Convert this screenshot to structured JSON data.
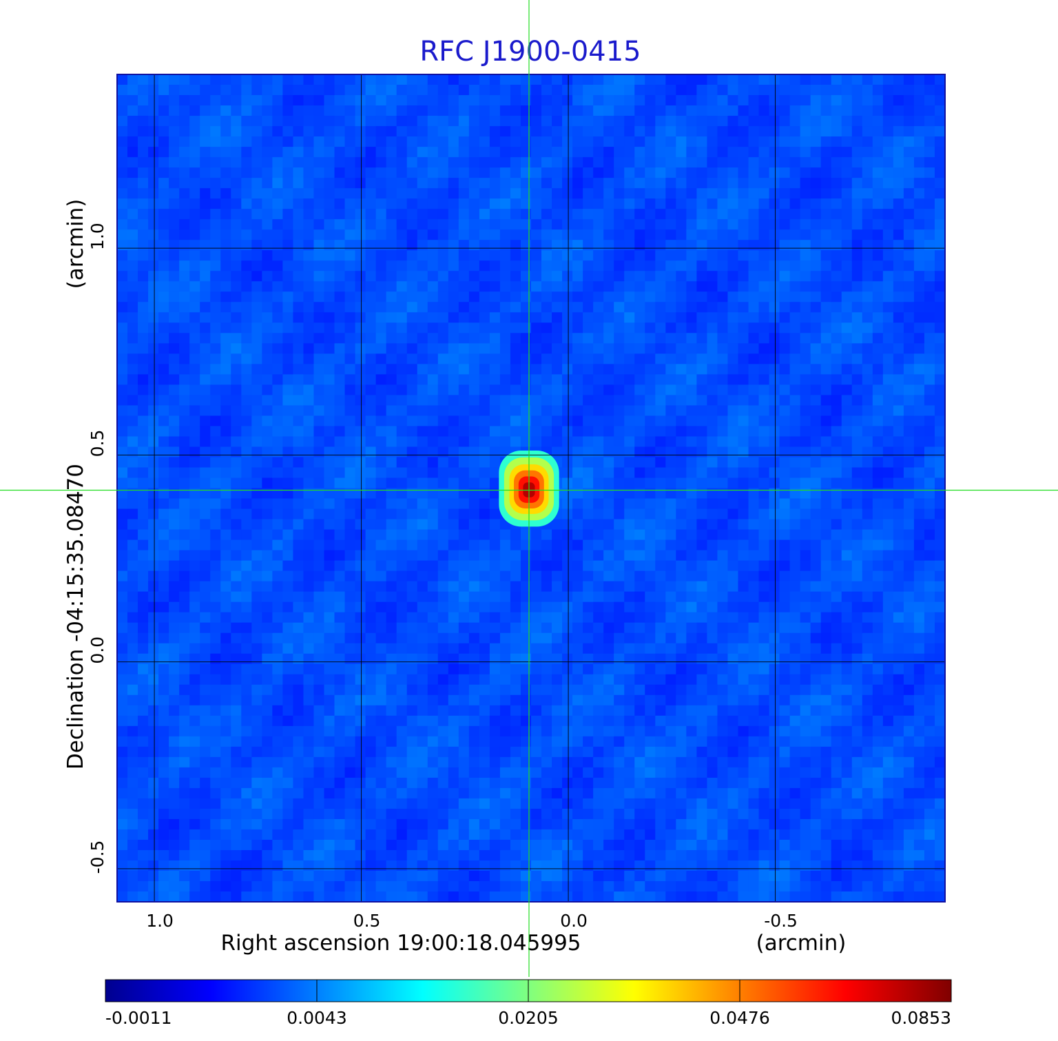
{
  "chart_data": {
    "type": "heatmap",
    "title": "RFC J1900-0415",
    "xlabel": "Right ascension  19:00:18.045995",
    "xunit": "(arcmin)",
    "ylabel": "Declination  -04:15:35.08470",
    "yunit": "(arcmin)",
    "x_range_arcmin": [
      1.09,
      -0.91
    ],
    "y_range_arcmin": [
      -0.58,
      1.42
    ],
    "x_ticks": [
      {
        "value": 1.0,
        "label": "1.0"
      },
      {
        "value": 0.5,
        "label": "0.5"
      },
      {
        "value": 0.0,
        "label": "0.0"
      },
      {
        "value": -0.5,
        "label": "-0.5"
      }
    ],
    "y_ticks": [
      {
        "value": -0.5,
        "label": "-0.5"
      },
      {
        "value": 0.0,
        "label": "0.0"
      },
      {
        "value": 0.5,
        "label": "0.5"
      },
      {
        "value": 1.0,
        "label": "1.0"
      }
    ],
    "grid": true,
    "crosshair_arcmin": {
      "x": 0.095,
      "y": 0.415
    },
    "source": {
      "x_arcmin": 0.095,
      "y_arcmin": 0.415,
      "peak": 0.0853
    },
    "colorbar": {
      "colormap": "jet",
      "ticks": [
        {
          "value": -0.0011,
          "label": "-0.0011"
        },
        {
          "value": 0.0043,
          "label": "0.0043"
        },
        {
          "value": 0.0205,
          "label": "0.0205"
        },
        {
          "value": 0.0476,
          "label": "0.0476"
        },
        {
          "value": 0.0853,
          "label": "0.0853"
        }
      ]
    },
    "colors": {
      "title": "#1a1acc",
      "crosshair": "#22dd22",
      "grid": "#000000",
      "background_field": "#1f56f0"
    }
  }
}
